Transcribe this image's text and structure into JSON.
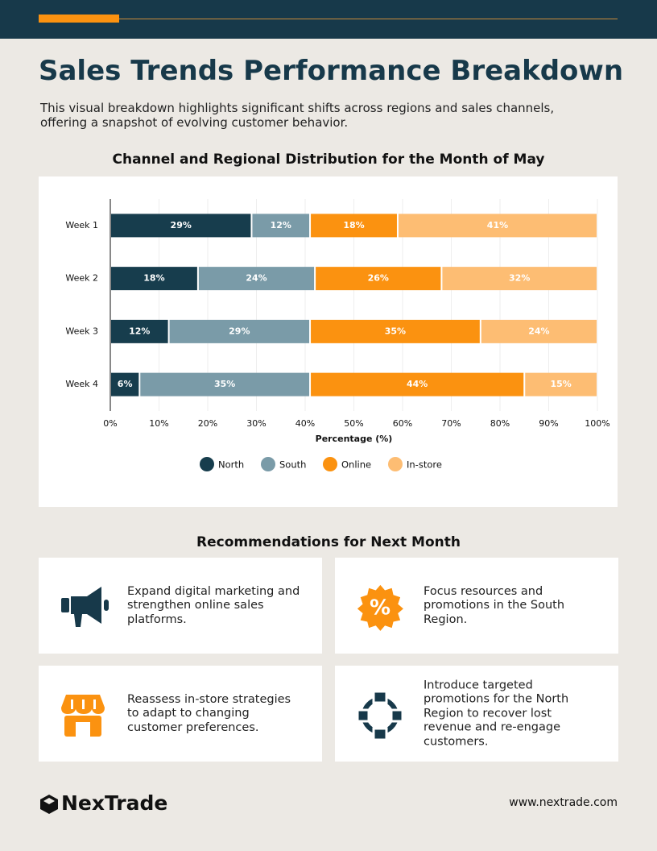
{
  "header": {
    "title": "Sales Trends Performance Breakdown",
    "subtitle": "This visual breakdown highlights significant shifts across regions and sales channels, offering a snapshot of evolving customer behavior."
  },
  "chart_data": {
    "type": "stacked-bar-horizontal",
    "title": "Channel and Regional Distribution for the Month of May",
    "categories": [
      "Week 1",
      "Week 2",
      "Week 3",
      "Week 4"
    ],
    "series": [
      {
        "name": "North",
        "color": "#173d4d",
        "values": [
          29,
          18,
          12,
          6
        ],
        "value_labels": [
          "29%",
          "18%",
          "12%",
          "6%"
        ]
      },
      {
        "name": "South",
        "color": "#7a9ba8",
        "values": [
          12,
          24,
          29,
          35
        ],
        "value_labels": [
          "12%",
          "24%",
          "29%",
          "35%"
        ]
      },
      {
        "name": "Online",
        "color": "#fb9210",
        "values": [
          18,
          26,
          35,
          44
        ],
        "value_labels": [
          "18%",
          "26%",
          "35%",
          "44%"
        ]
      },
      {
        "name": "In-store",
        "color": "#fdbd73",
        "values": [
          41,
          32,
          24,
          15
        ],
        "value_labels": [
          "41%",
          "32%",
          "24%",
          "15%"
        ]
      }
    ],
    "xlabel": "Percentage (%)",
    "xlim": [
      0,
      100
    ],
    "xticks": [
      {
        "value": 0,
        "label": "0%"
      },
      {
        "value": 10,
        "label": "10%"
      },
      {
        "value": 20,
        "label": "20%"
      },
      {
        "value": 30,
        "label": "30%"
      },
      {
        "value": 40,
        "label": "40%"
      },
      {
        "value": 50,
        "label": "50%"
      },
      {
        "value": 60,
        "label": "60%"
      },
      {
        "value": 70,
        "label": "70%"
      },
      {
        "value": 80,
        "label": "80%"
      },
      {
        "value": 90,
        "label": "90%"
      },
      {
        "value": 100,
        "label": "100%"
      }
    ],
    "grid": true
  },
  "recommendations": {
    "title": "Recommendations for Next Month",
    "items": [
      "Expand digital marketing and strengthen online sales platforms.",
      "Focus resources and promotions in the South Region.",
      "Reassess in-store strategies to adapt to changing customer preferences.",
      "Introduce targeted promotions for the North Region to recover lost revenue and re-engage customers."
    ]
  },
  "footer": {
    "brand": "NexTrade",
    "url": "www.nextrade.com"
  }
}
